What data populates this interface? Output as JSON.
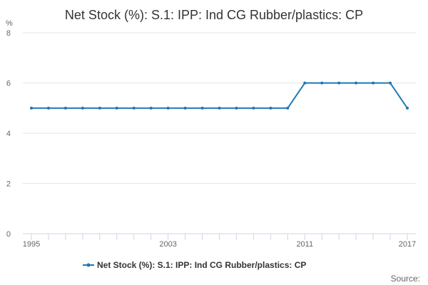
{
  "chart_data": {
    "type": "line",
    "title": "Net Stock (%): S.1: IPP: Ind CG Rubber/plastics: CP",
    "ylabel": "%",
    "xlabel": "",
    "x": [
      1995,
      1996,
      1997,
      1998,
      1999,
      2000,
      2001,
      2002,
      2003,
      2004,
      2005,
      2006,
      2007,
      2008,
      2009,
      2010,
      2011,
      2012,
      2013,
      2014,
      2015,
      2016,
      2017
    ],
    "series": [
      {
        "name": "Net Stock (%): S.1: IPP: Ind CG Rubber/plastics: CP",
        "values": [
          5,
          5,
          5,
          5,
          5,
          5,
          5,
          5,
          5,
          5,
          5,
          5,
          5,
          5,
          5,
          5,
          6,
          6,
          6,
          6,
          6,
          6,
          5
        ]
      }
    ],
    "xlim": [
      1995,
      2017
    ],
    "ylim": [
      0,
      8
    ],
    "x_tick_labels": [
      "1995",
      "2003",
      "2011",
      "2017"
    ],
    "y_tick_labels": [
      "0",
      "2",
      "4",
      "6",
      "8"
    ],
    "grid": "horizontal",
    "legend_position": "bottom",
    "series_color": "#1f77b4",
    "source_label": "Source:"
  }
}
